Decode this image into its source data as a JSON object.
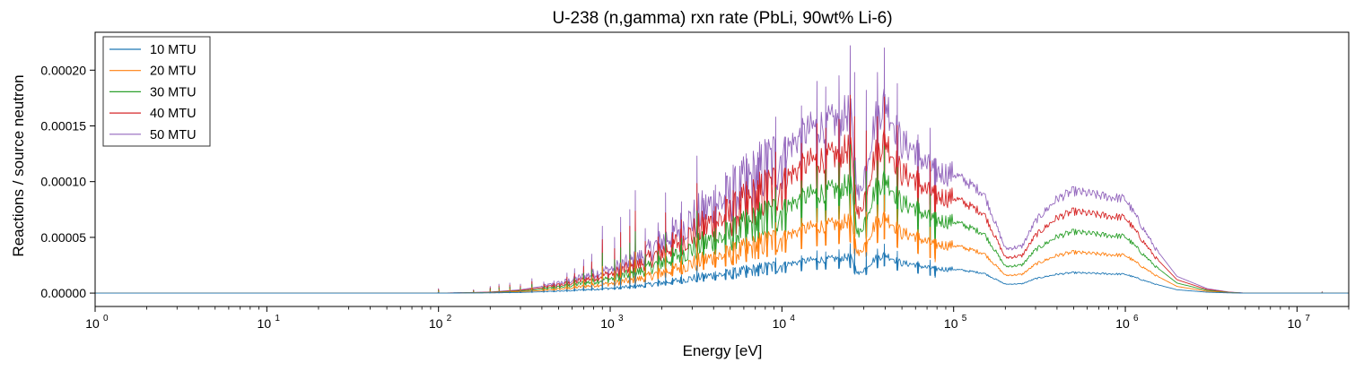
{
  "chart_data": {
    "type": "line",
    "title": "U-238 (n,gamma) rxn rate (PbLi, 90wt% Li-6)",
    "xlabel": "Energy [eV]",
    "ylabel": "Reactions / source neutron",
    "xscale": "log",
    "xlim": [
      1,
      20000000
    ],
    "ylim": [
      -1.2e-05,
      0.000234
    ],
    "x_ticks": [
      {
        "value": 1,
        "base": "10",
        "exp": "0"
      },
      {
        "value": 10,
        "base": "10",
        "exp": "1"
      },
      {
        "value": 100,
        "base": "10",
        "exp": "2"
      },
      {
        "value": 1000,
        "base": "10",
        "exp": "3"
      },
      {
        "value": 10000,
        "base": "10",
        "exp": "4"
      },
      {
        "value": 100000,
        "base": "10",
        "exp": "5"
      },
      {
        "value": 1000000,
        "base": "10",
        "exp": "6"
      },
      {
        "value": 10000000,
        "base": "10",
        "exp": "7"
      }
    ],
    "y_ticks": [
      {
        "value": 0,
        "label": "0.00000"
      },
      {
        "value": 5e-05,
        "label": "0.00005"
      },
      {
        "value": 0.0001,
        "label": "0.00010"
      },
      {
        "value": 0.00015,
        "label": "0.00015"
      },
      {
        "value": 0.0002,
        "label": "0.00020"
      }
    ],
    "grid": false,
    "legend_position": "top-left",
    "series": [
      {
        "name": "10 MTU",
        "color": "#1f77b4",
        "scale": 0.2
      },
      {
        "name": "20 MTU",
        "color": "#ff7f0e",
        "scale": 0.4
      },
      {
        "name": "30 MTU",
        "color": "#2ca02c",
        "scale": 0.6
      },
      {
        "name": "40 MTU",
        "color": "#d62728",
        "scale": 0.8
      },
      {
        "name": "50 MTU",
        "color": "#9467bd",
        "scale": 1.0
      }
    ],
    "x": [
      1,
      10,
      100,
      150,
      200,
      300,
      400,
      500,
      600,
      800,
      1000,
      1500,
      2000,
      3000,
      4000,
      5000,
      7000,
      10000,
      15000,
      20000,
      25000,
      28000,
      35000,
      40000,
      50000,
      60000,
      70000,
      80000,
      100000,
      150000,
      200000,
      250000,
      300000,
      400000,
      500000,
      700000,
      1000000,
      1500000,
      2000000,
      3000000,
      4000000,
      5000000,
      10000000,
      20000000
    ],
    "y_50mtu": [
      0,
      0,
      0,
      5e-07,
      1e-06,
      3e-06,
      6e-06,
      9e-06,
      1.2e-05,
      1.8e-05,
      2.2e-05,
      3.3e-05,
      4.8e-05,
      6.8e-05,
      8.2e-05,
      8.8e-05,
      0.000108,
      0.000128,
      0.00015,
      0.000155,
      0.000165,
      8.5e-05,
      0.000158,
      0.000175,
      0.000135,
      0.00013,
      0.000115,
      0.00011,
      0.000108,
      9e-05,
      4e-05,
      4.2e-05,
      6.5e-05,
      8.5e-05,
      9.2e-05,
      8.8e-05,
      8.5e-05,
      4e-05,
      1.5e-05,
      4e-06,
      1e-06,
      0,
      0,
      0
    ],
    "spikes_50mtu": [
      {
        "x": 100,
        "y": 4e-06
      },
      {
        "x": 160,
        "y": 3e-06
      },
      {
        "x": 200,
        "y": 6e-06
      },
      {
        "x": 225,
        "y": 8e-06
      },
      {
        "x": 260,
        "y": 9e-06
      },
      {
        "x": 300,
        "y": 8e-06
      },
      {
        "x": 350,
        "y": 1.3e-05
      },
      {
        "x": 410,
        "y": 1e-05
      },
      {
        "x": 470,
        "y": 1.1e-05
      },
      {
        "x": 560,
        "y": 1.8e-05
      },
      {
        "x": 620,
        "y": 2.2e-05
      },
      {
        "x": 700,
        "y": 3e-05
      },
      {
        "x": 780,
        "y": 3.5e-05
      },
      {
        "x": 900,
        "y": 6e-05
      },
      {
        "x": 1060,
        "y": 5e-05
      },
      {
        "x": 1150,
        "y": 6.8e-05
      },
      {
        "x": 1300,
        "y": 7.5e-05
      },
      {
        "x": 1400,
        "y": 9.2e-05
      },
      {
        "x": 1600,
        "y": 5.8e-05
      },
      {
        "x": 1900,
        "y": 6.3e-05
      },
      {
        "x": 2100,
        "y": 9e-05
      },
      {
        "x": 2300,
        "y": 6.5e-05
      },
      {
        "x": 2600,
        "y": 8.2e-05
      },
      {
        "x": 3200,
        "y": 0.000123
      },
      {
        "x": 3500,
        "y": 8.5e-05
      },
      {
        "x": 4100,
        "y": 9.7e-05
      },
      {
        "x": 4700,
        "y": 0.000108
      },
      {
        "x": 5200,
        "y": 0.000115
      },
      {
        "x": 6200,
        "y": 0.000125
      },
      {
        "x": 7300,
        "y": 0.000118
      },
      {
        "x": 8200,
        "y": 0.000135
      },
      {
        "x": 9200,
        "y": 0.000158
      },
      {
        "x": 10500,
        "y": 0.00014
      },
      {
        "x": 13000,
        "y": 0.000168
      },
      {
        "x": 16000,
        "y": 0.00019
      },
      {
        "x": 18000,
        "y": 0.000185
      },
      {
        "x": 21500,
        "y": 0.000195
      },
      {
        "x": 25000,
        "y": 0.000222
      },
      {
        "x": 26500,
        "y": 0.000198
      },
      {
        "x": 31000,
        "y": 0.000182
      },
      {
        "x": 36000,
        "y": 0.000198
      },
      {
        "x": 39500,
        "y": 0.00022
      },
      {
        "x": 47000,
        "y": 0.000188
      },
      {
        "x": 62000,
        "y": 0.000142
      },
      {
        "x": 73000,
        "y": 0.000148
      },
      {
        "x": 78000,
        "y": 7e-05
      }
    ]
  }
}
